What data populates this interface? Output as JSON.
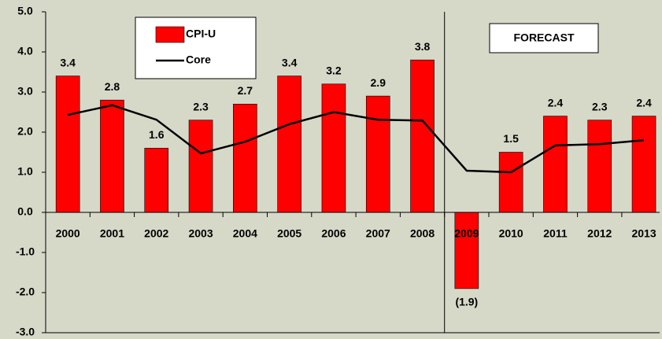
{
  "chart_data": {
    "type": "bar",
    "categories": [
      "2000",
      "2001",
      "2002",
      "2003",
      "2004",
      "2005",
      "2006",
      "2007",
      "2008",
      "2009",
      "2010",
      "2011",
      "2012",
      "2013"
    ],
    "series": [
      {
        "name": "CPI-U",
        "type": "bar",
        "color": "#ff0000",
        "values": [
          3.4,
          2.8,
          1.6,
          2.3,
          2.7,
          3.4,
          3.2,
          2.9,
          3.8,
          -1.9,
          1.5,
          2.4,
          2.3,
          2.4
        ],
        "value_labels": [
          "3.4",
          "2.8",
          "1.6",
          "2.3",
          "2.7",
          "3.4",
          "3.2",
          "2.9",
          "3.8",
          "(1.9)",
          "1.5",
          "2.4",
          "2.3",
          "2.4"
        ]
      },
      {
        "name": "Core",
        "type": "line",
        "color": "#000000",
        "values": [
          2.43,
          2.67,
          2.31,
          1.47,
          1.76,
          2.2,
          2.5,
          2.31,
          2.29,
          1.04,
          1.0,
          1.67,
          1.7,
          1.8
        ]
      }
    ],
    "annotation": "FORECAST",
    "ylim": [
      -3,
      5
    ],
    "yticks": [
      {
        "value": -3,
        "label": "-3.0"
      },
      {
        "value": -2,
        "label": "-2.0"
      },
      {
        "value": -1,
        "label": "-1.0"
      },
      {
        "value": 0,
        "label": "0.0"
      },
      {
        "value": 1,
        "label": "1.0"
      },
      {
        "value": 2,
        "label": "2.0"
      },
      {
        "value": 3,
        "label": "3.0"
      },
      {
        "value": 4,
        "label": "4.0"
      },
      {
        "value": 5,
        "label": "5.0"
      }
    ]
  }
}
